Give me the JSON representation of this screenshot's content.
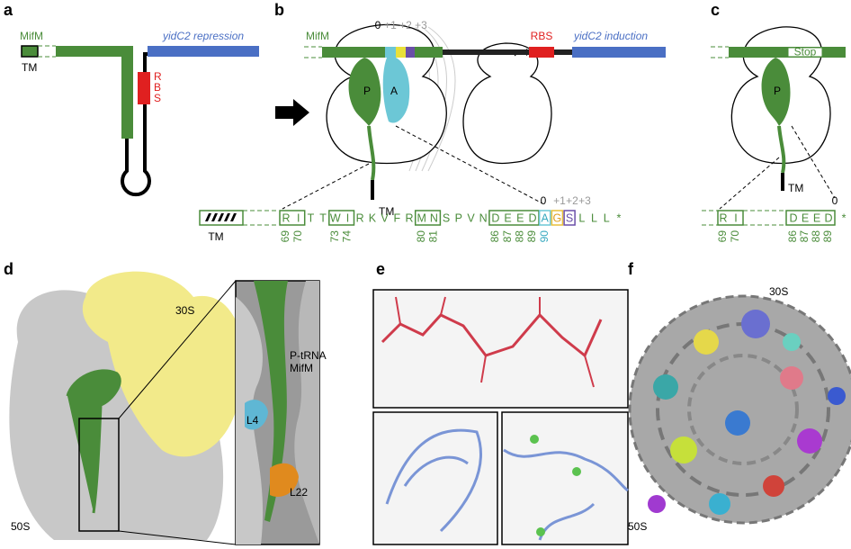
{
  "panel_labels": [
    "a",
    "b",
    "c",
    "d",
    "e",
    "f"
  ],
  "panel_a": {
    "gene_label": "MifM",
    "tm_label": "TM",
    "target_label": "yidC2 repression",
    "rbs_letters": [
      "R",
      "B",
      "S"
    ]
  },
  "panel_b": {
    "gene_label": "MifM",
    "site_0": "0",
    "site_plus": [
      "+1",
      "+2",
      "+3"
    ],
    "rbs_label": "RBS",
    "target_label": "yidC2 induction",
    "p_site": "P",
    "a_site": "A",
    "tm_label": "TM"
  },
  "sequence_b": {
    "tm_label": "TM",
    "site_0": "0",
    "site_plus": [
      "+1",
      "+2",
      "+3"
    ],
    "residues": [
      "R",
      "I",
      "T",
      "T",
      "W",
      "I",
      "R",
      "K",
      "V",
      "F",
      "R",
      "M",
      "N",
      "S",
      "P",
      "V",
      "N",
      "D",
      "E",
      "E",
      "D",
      "A",
      "G",
      "S",
      "L",
      "L",
      "L",
      "*"
    ],
    "numbers": [
      69,
      70,
      73,
      74,
      80,
      81,
      86,
      87,
      88,
      89,
      90
    ]
  },
  "panel_c": {
    "stop_label": "Stop",
    "p_site": "P",
    "tm_label": "TM",
    "site_0": "0",
    "residues": [
      "R",
      "I",
      "D",
      "E",
      "E",
      "D",
      "*"
    ],
    "numbers": [
      69,
      70,
      86,
      87,
      88,
      89
    ]
  },
  "panel_d": {
    "small_subunit": "30S",
    "trna_label": "P-tRNA",
    "peptide_label": "MifM",
    "l4_label": "L4",
    "l22_label": "L22",
    "large_subunit": "50S"
  },
  "panel_f": {
    "small_subunit": "30S",
    "large_subunit": "50S"
  }
}
